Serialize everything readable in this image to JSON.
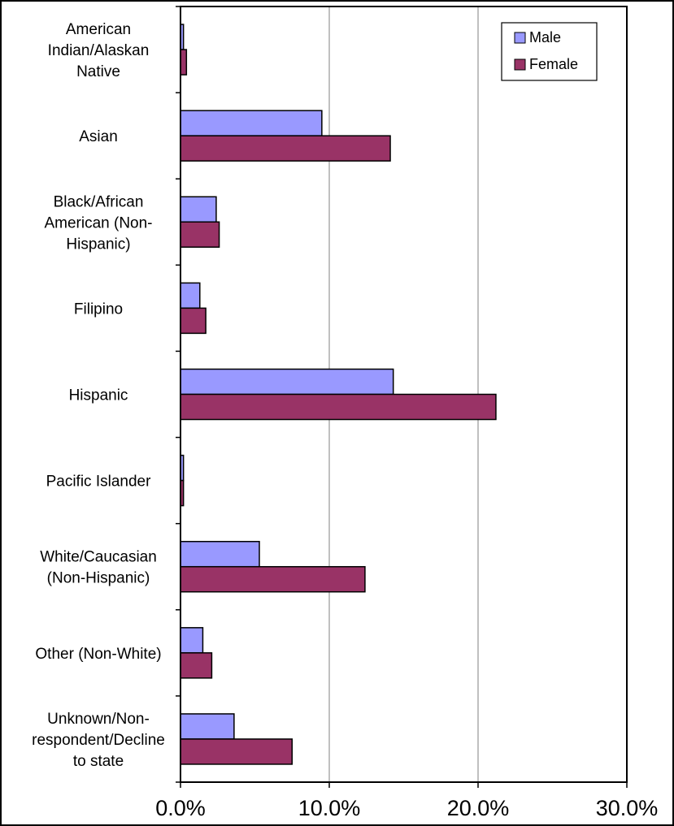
{
  "chart_data": {
    "type": "bar",
    "orientation": "horizontal",
    "title": "",
    "xlabel": "",
    "ylabel": "",
    "categories": [
      [
        "American",
        "Indian/Alaskan",
        "Native"
      ],
      [
        "Asian"
      ],
      [
        "Black/African",
        "American (Non-",
        "Hispanic)"
      ],
      [
        "Filipino"
      ],
      [
        "Hispanic"
      ],
      [
        "Pacific Islander"
      ],
      [
        "White/Caucasian",
        "(Non-Hispanic)"
      ],
      [
        "Other (Non-White)"
      ],
      [
        "Unknown/Non-",
        "respondent/Decline",
        "to state"
      ]
    ],
    "series": [
      {
        "name": "Male",
        "color": "#9999ff",
        "values": [
          0.2,
          9.5,
          2.4,
          1.3,
          14.3,
          0.2,
          5.3,
          1.5,
          3.6
        ]
      },
      {
        "name": "Female",
        "color": "#993366",
        "values": [
          0.4,
          14.1,
          2.6,
          1.7,
          21.2,
          0.2,
          12.4,
          2.1,
          7.5
        ]
      }
    ],
    "xlim": [
      0,
      30
    ],
    "xticks": [
      0,
      10,
      20,
      30
    ],
    "xtick_labels": [
      "0.0%",
      "10.0%",
      "20.0%",
      "30.0%"
    ],
    "grid": true,
    "legend": {
      "position": "top-right",
      "entries": [
        "Male",
        "Female"
      ]
    }
  }
}
